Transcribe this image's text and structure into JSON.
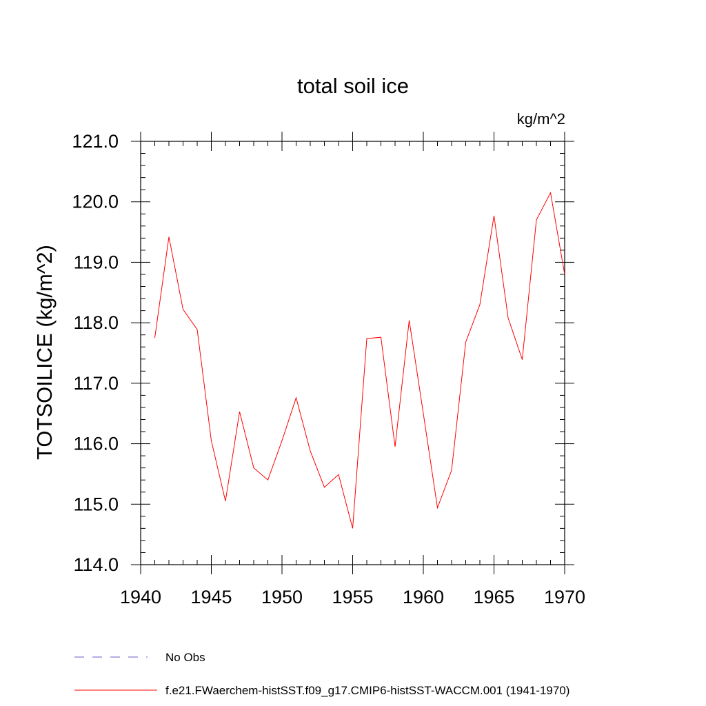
{
  "chart_data": {
    "type": "line",
    "title": "total soil ice",
    "units": "kg/m^2",
    "ylabel": "TOTSOILICE  (kg/m^2)",
    "xlabel": "",
    "xlim": [
      1940,
      1970
    ],
    "ylim": [
      114.0,
      121.0
    ],
    "x_ticks": [
      "1940",
      "1945",
      "1950",
      "1955",
      "1960",
      "1965",
      "1970"
    ],
    "y_ticks": [
      "114.0",
      "115.0",
      "116.0",
      "117.0",
      "118.0",
      "119.0",
      "120.0",
      "121.0"
    ],
    "grid": false,
    "legend_position": "bottom-left",
    "series": [
      {
        "name": "f.e21.FWaerchem-histSST.f09_g17.CMIP6-histSST-WACCM.001 (1941-1970)",
        "color": "#ff0000",
        "line_style": "solid",
        "x": [
          1941,
          1942,
          1943,
          1944,
          1945,
          1946,
          1947,
          1948,
          1949,
          1950,
          1951,
          1952,
          1953,
          1954,
          1955,
          1956,
          1957,
          1958,
          1959,
          1960,
          1961,
          1962,
          1963,
          1964,
          1965,
          1966,
          1967,
          1968,
          1969,
          1970
        ],
        "y": [
          117.75,
          119.42,
          118.22,
          117.89,
          116.05,
          115.05,
          116.53,
          115.6,
          115.4,
          116.05,
          116.76,
          115.88,
          115.28,
          115.49,
          114.6,
          117.74,
          117.76,
          115.95,
          118.04,
          116.5,
          114.94,
          115.56,
          117.68,
          118.3,
          119.77,
          118.08,
          117.39,
          119.7,
          120.15,
          118.8
        ]
      }
    ],
    "legend": [
      {
        "label": "No Obs",
        "color": "#6a5acd",
        "line_style": "dashed"
      },
      {
        "label": "f.e21.FWaerchem-histSST.f09_g17.CMIP6-histSST-WACCM.001 (1941-1970)",
        "color": "#ff0000",
        "line_style": "solid"
      }
    ]
  }
}
